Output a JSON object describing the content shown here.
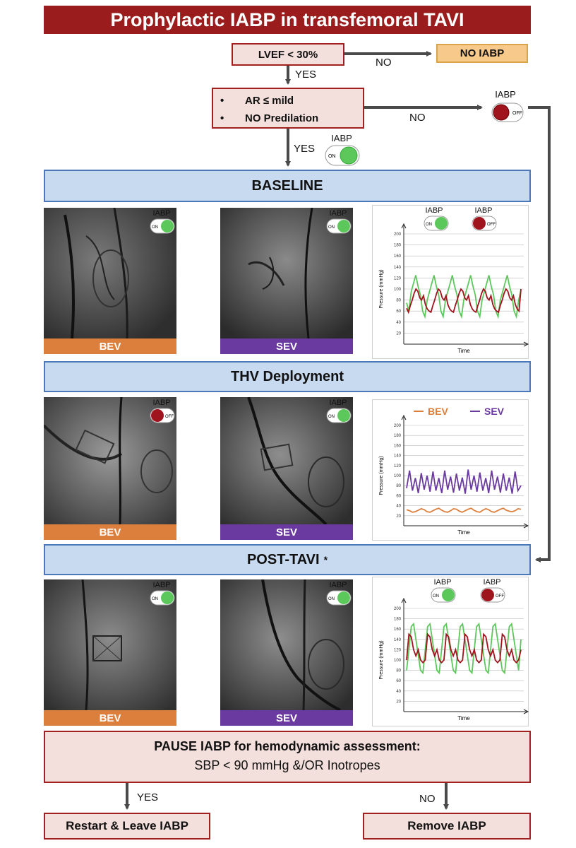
{
  "title": "Prophylactic IABP in transfemoral TAVI",
  "flow": {
    "lvef": "LVEF < 30%",
    "no_iabp": "NO IABP",
    "no1": "NO",
    "yes1": "YES",
    "criteria": [
      "AR ≤ mild",
      "NO Predilation"
    ],
    "bullet": "•",
    "no2": "NO",
    "yes2": "YES",
    "iabp_label": "IABP",
    "on": "ON",
    "off": "OFF"
  },
  "sections": {
    "baseline": "BASELINE",
    "deployment": "THV Deployment",
    "post": "POST-TAVI",
    "post_mark": "*"
  },
  "tags": {
    "bev": "BEV",
    "sev": "SEV"
  },
  "colors": {
    "title_bg": "#9b1c1c",
    "bev": "#dc7f3d",
    "sev": "#6b3aa0",
    "iabp_on_trace": "#5cc85c",
    "iabp_off_trace": "#a0141e",
    "band": "#c8daf0"
  },
  "pause": {
    "line1": "PAUSE IABP for hemodynamic assessment:",
    "line2": "SBP < 90 mmHg &/OR Inotropes",
    "yes": "YES",
    "no": "NO",
    "restart": "Restart & Leave IABP",
    "remove": "Remove IABP"
  },
  "chart_data": [
    {
      "type": "line",
      "panel": "baseline",
      "xlabel": "Time",
      "ylabel": "Pressure (mmHg)",
      "ylim": [
        0,
        200
      ],
      "yticks": [
        20,
        40,
        60,
        80,
        100,
        120,
        140,
        160,
        180,
        200
      ],
      "grid": true,
      "legend": "IABP ON / IABP OFF toggle icons, top",
      "series": [
        {
          "name": "IABP ON",
          "color": "#5cc85c",
          "values": [
            75,
            60,
            95,
            110,
            125,
            105,
            90,
            60,
            50,
            80,
            95,
            110,
            125,
            105,
            90,
            60,
            50,
            80,
            95,
            110,
            125,
            105,
            90,
            60,
            50,
            80,
            95,
            110,
            125,
            105,
            90,
            60,
            50,
            80,
            95,
            110,
            125,
            105,
            90,
            60,
            50,
            80,
            95,
            110,
            125,
            105,
            90,
            60,
            50,
            80,
            98
          ]
        },
        {
          "name": "IABP OFF",
          "color": "#a0141e",
          "values": [
            65,
            58,
            70,
            80,
            92,
            100,
            96,
            84,
            80,
            88,
            72,
            64,
            60,
            58,
            70,
            80,
            92,
            100,
            96,
            84,
            80,
            88,
            72,
            64,
            60,
            58,
            70,
            80,
            92,
            100,
            96,
            84,
            80,
            88,
            72,
            64,
            60,
            58,
            70,
            80,
            92,
            100,
            96,
            84,
            80,
            88,
            72,
            64,
            60,
            58,
            70,
            80,
            92,
            100,
            96,
            84,
            80,
            88,
            72,
            64,
            60,
            100
          ]
        }
      ]
    },
    {
      "type": "line",
      "panel": "deployment",
      "xlabel": "Time",
      "ylabel": "Pressure (mmHg)",
      "ylim": [
        0,
        200
      ],
      "yticks": [
        20,
        40,
        60,
        80,
        100,
        120,
        140,
        160,
        180,
        200
      ],
      "grid": true,
      "legend": "top",
      "series": [
        {
          "name": "BEV",
          "color": "#dc7f3d",
          "values": [
            32,
            30,
            27,
            28,
            31,
            34,
            32,
            28,
            27,
            30,
            33,
            35,
            31,
            28,
            27,
            30,
            34,
            33,
            29,
            27,
            30,
            33,
            35,
            31,
            28,
            27,
            31,
            34,
            32,
            28,
            27,
            30,
            33,
            35,
            31,
            29,
            28,
            30,
            34,
            33
          ]
        },
        {
          "name": "SEV",
          "color": "#6b3aa0",
          "values": [
            75,
            110,
            70,
            95,
            65,
            105,
            72,
            100,
            68,
            108,
            70,
            95,
            65,
            110,
            72,
            98,
            66,
            104,
            70,
            96,
            64,
            112,
            72,
            100,
            68,
            106,
            70,
            95,
            65,
            110,
            72,
            98,
            66,
            104,
            70,
            96,
            64,
            108,
            70,
            80
          ]
        }
      ]
    },
    {
      "type": "line",
      "panel": "post-tavi",
      "xlabel": "Time",
      "ylabel": "Pressure (mmHg)",
      "ylim": [
        0,
        200
      ],
      "yticks": [
        20,
        40,
        60,
        80,
        100,
        120,
        140,
        160,
        180,
        200
      ],
      "grid": true,
      "legend": "IABP ON / IABP OFF toggle icons, top",
      "series": [
        {
          "name": "IABP ON",
          "color": "#5cc85c",
          "values": [
            80,
            120,
            165,
            170,
            140,
            110,
            80,
            75,
            120,
            165,
            170,
            140,
            110,
            80,
            75,
            120,
            165,
            170,
            140,
            110,
            80,
            75,
            120,
            165,
            170,
            140,
            110,
            80,
            75,
            120,
            165,
            170,
            140,
            110,
            80,
            75,
            120,
            165,
            170,
            140,
            110,
            80,
            75,
            120,
            165,
            170,
            140,
            110,
            80,
            140
          ]
        },
        {
          "name": "IABP OFF",
          "color": "#a0141e",
          "values": [
            100,
            150,
            145,
            120,
            108,
            120,
            100,
            95,
            100,
            150,
            145,
            120,
            108,
            120,
            100,
            95,
            100,
            150,
            145,
            120,
            108,
            120,
            100,
            95,
            100,
            150,
            145,
            120,
            108,
            120,
            100,
            95,
            100,
            150,
            145,
            120,
            108,
            120,
            100,
            95,
            100,
            150,
            145,
            120,
            108,
            120,
            100,
            95,
            100,
            120
          ]
        }
      ]
    }
  ]
}
